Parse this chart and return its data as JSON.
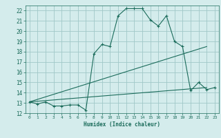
{
  "background_color": "#d4ecec",
  "grid_color": "#a0c8c8",
  "line_color": "#1a6b5a",
  "xlabel": "Humidex (Indice chaleur)",
  "xlim": [
    -0.5,
    23.5
  ],
  "ylim": [
    12,
    22.5
  ],
  "yticks": [
    12,
    13,
    14,
    15,
    16,
    17,
    18,
    19,
    20,
    21,
    22
  ],
  "xticks": [
    0,
    1,
    2,
    3,
    4,
    5,
    6,
    7,
    8,
    9,
    10,
    11,
    12,
    13,
    14,
    15,
    16,
    17,
    18,
    19,
    20,
    21,
    22,
    23
  ],
  "series1_x": [
    0,
    1,
    2,
    3,
    4,
    5,
    6,
    7,
    8,
    9,
    10,
    11,
    12,
    13,
    14,
    15,
    16,
    17,
    18,
    19,
    20,
    21,
    22,
    23
  ],
  "series1_y": [
    13.1,
    12.9,
    13.1,
    12.7,
    12.7,
    12.8,
    12.8,
    12.3,
    17.8,
    18.7,
    18.5,
    21.5,
    22.2,
    22.2,
    22.2,
    21.1,
    20.5,
    21.5,
    19.0,
    18.5,
    14.2,
    15.0,
    14.3,
    14.5
  ],
  "series2_x": [
    0,
    22
  ],
  "series2_y": [
    13.1,
    18.5
  ],
  "series3_x": [
    0,
    22
  ],
  "series3_y": [
    13.1,
    14.5
  ],
  "xlabel_fontsize": 5.5,
  "ytick_fontsize": 5.5,
  "xtick_fontsize": 4.5
}
